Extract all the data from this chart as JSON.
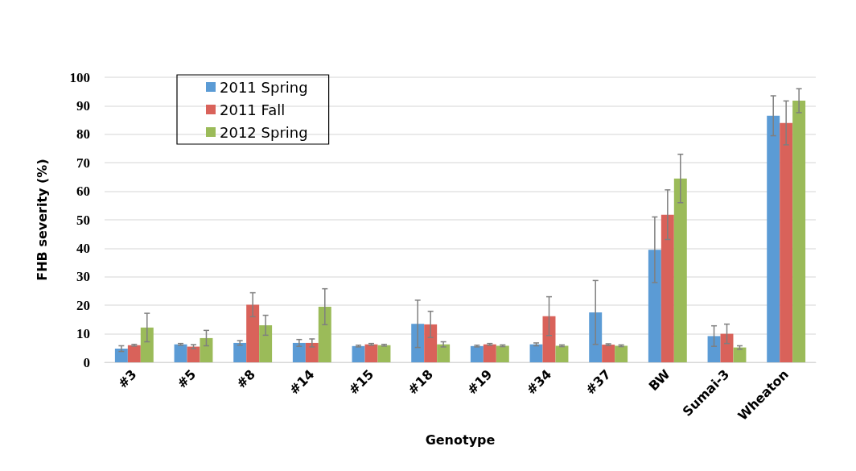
{
  "chart_data": {
    "type": "bar",
    "xlabel": "Genotype",
    "ylabel": "FHB severity (%)",
    "categories": [
      "#3",
      "#5",
      "#8",
      "#14",
      "#15",
      "#18",
      "#19",
      "#34",
      "#37",
      "BW",
      "Sumai-3",
      "Wheaton"
    ],
    "series": [
      {
        "name": "2011 Spring",
        "color": "#5b9bd5",
        "values": [
          4.8,
          6.3,
          6.8,
          6.8,
          5.7,
          13.5,
          5.7,
          6.3,
          17.5,
          39.5,
          9.2,
          86.5
        ],
        "errors": [
          1,
          0.3,
          0.8,
          1.2,
          0.3,
          8.3,
          0.3,
          0.5,
          11.2,
          11.5,
          3.6,
          7
        ]
      },
      {
        "name": "2011 Fall",
        "color": "#d9625a",
        "values": [
          6.0,
          5.5,
          20.2,
          6.8,
          6.3,
          13.3,
          6.3,
          16.2,
          6.2,
          51.8,
          10,
          84
        ],
        "errors": [
          0.3,
          0.7,
          4.2,
          1.4,
          0.3,
          4.6,
          0.3,
          6.8,
          0.3,
          8.7,
          3.4,
          7.7
        ]
      },
      {
        "name": "2012 Spring",
        "color": "#9bbb59",
        "values": [
          12.2,
          8.5,
          13,
          19.5,
          6,
          6.3,
          5.8,
          5.8,
          5.8,
          64.5,
          5.2,
          91.8
        ],
        "errors": [
          5,
          2.7,
          3.5,
          6.3,
          0.3,
          0.9,
          0.3,
          0.3,
          0.3,
          8.5,
          0.6,
          4.2
        ]
      }
    ],
    "ylim": [
      0,
      100
    ],
    "yticks": [
      0,
      10,
      20,
      30,
      40,
      50,
      60,
      70,
      80,
      90,
      100
    ],
    "grid": "y",
    "legend": "top left"
  }
}
